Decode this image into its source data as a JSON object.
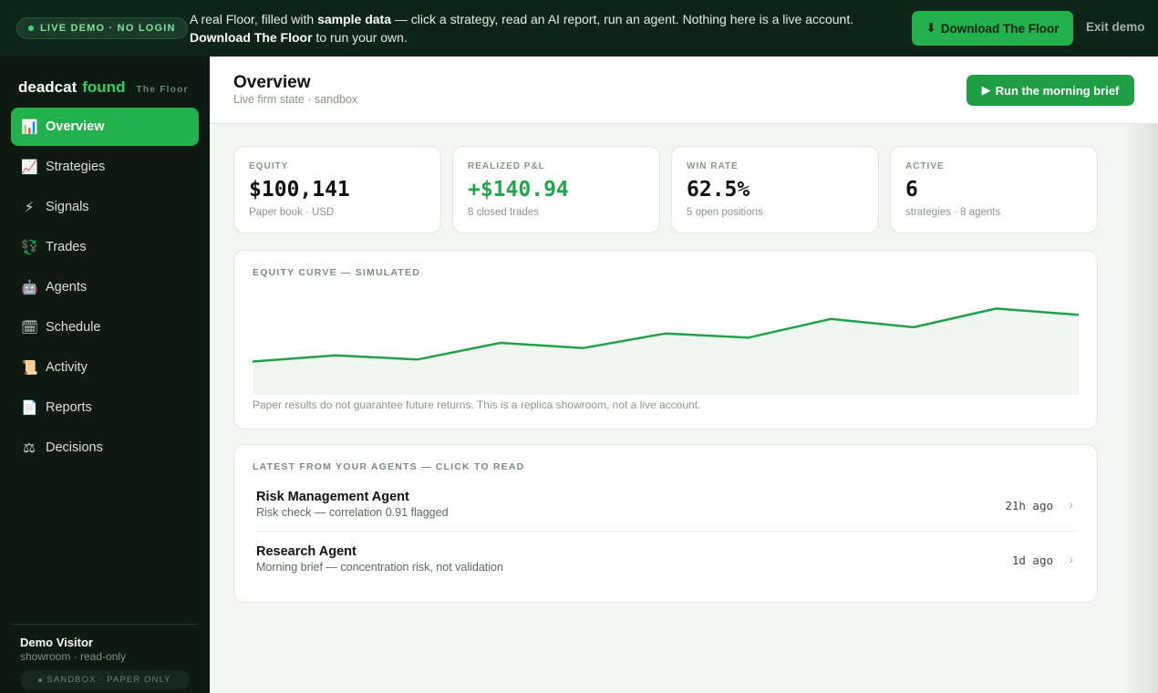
{
  "banner": {
    "pill": "LIVE DEMO · NO LOGIN",
    "text_1": "A real Floor, filled with ",
    "text_bold_1": "sample data",
    "text_2": " — click a strategy, read an AI report, run an agent. Nothing here is a live account. ",
    "text_bold_2": "Download The Floor",
    "text_3": " to run your own.",
    "download_icon": "⬇",
    "download_label": "Download The Floor",
    "exit_label": "Exit demo"
  },
  "brand": {
    "part1": "deadcat",
    "part2": "found",
    "product": "The Floor"
  },
  "sidebar": {
    "items": [
      {
        "icon": "📊",
        "icon_name": "bar-chart-icon",
        "label": "Overview",
        "active": true
      },
      {
        "icon": "📈",
        "icon_name": "trend-up-icon",
        "label": "Strategies"
      },
      {
        "icon": "⚡",
        "icon_name": "lightning-icon",
        "label": "Signals"
      },
      {
        "icon": "💱",
        "icon_name": "exchange-icon",
        "label": "Trades"
      },
      {
        "icon": "🤖",
        "icon_name": "robot-icon",
        "label": "Agents"
      },
      {
        "icon": "🗓",
        "icon_name": "calendar-icon",
        "label": "Schedule"
      },
      {
        "icon": "📜",
        "icon_name": "scroll-icon",
        "label": "Activity"
      },
      {
        "icon": "📄",
        "icon_name": "document-icon",
        "label": "Reports"
      },
      {
        "icon": "⚖",
        "icon_name": "scales-icon",
        "label": "Decisions"
      }
    ],
    "user_name": "Demo Visitor",
    "user_sub": "showroom · read-only",
    "sandbox": "SANDBOX · PAPER ONLY"
  },
  "header": {
    "title": "Overview",
    "subtitle": "Live firm state · sandbox",
    "brief_icon": "▶",
    "brief_label": "Run the morning brief"
  },
  "stats": [
    {
      "label": "EQUITY",
      "value": "$100,141",
      "sub": "Paper book · USD",
      "green": false
    },
    {
      "label": "REALIZED P&L",
      "value": "+$140.94",
      "sub": "8 closed trades",
      "green": true
    },
    {
      "label": "WIN RATE",
      "value": "62.5%",
      "sub": "5 open positions",
      "green": false
    },
    {
      "label": "ACTIVE",
      "value": "6",
      "sub": "strategies · 8 agents",
      "green": false
    }
  ],
  "equity_chart": {
    "label": "EQUITY CURVE — SIMULATED",
    "disclaimer": "Paper results do not guarantee future returns. This is a replica showroom, not a live account."
  },
  "chart_data": {
    "type": "area",
    "title": "EQUITY CURVE — SIMULATED",
    "x": [
      0,
      1,
      2,
      3,
      4,
      5,
      6,
      7,
      8,
      9,
      10
    ],
    "series": [
      {
        "values": [
          22,
          28,
          24,
          40,
          35,
          49,
          45,
          63,
          55,
          73,
          67
        ]
      }
    ],
    "ylim": [
      -10,
      90
    ],
    "grid": false,
    "line_color": "#22a04a",
    "fill_color": "#eef8f0"
  },
  "agents": {
    "label": "LATEST FROM YOUR AGENTS — CLICK TO READ",
    "items": [
      {
        "name": "Risk Management Agent",
        "desc": "Risk check — correlation 0.91 flagged",
        "time": "21h ago"
      },
      {
        "name": "Research Agent",
        "desc": "Morning brief — concentration risk, not validation",
        "time": "1d ago"
      }
    ],
    "chevron": "›"
  }
}
